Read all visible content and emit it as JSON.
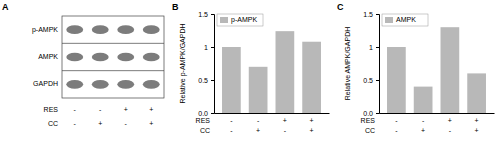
{
  "chart_data": [
    {
      "type": "blot",
      "title": "A",
      "rows": [
        "p-AMPK",
        "AMPK",
        "GAPDH"
      ],
      "categories": [
        [
          "-",
          "-"
        ],
        [
          "-",
          "+"
        ],
        [
          "+",
          "-"
        ],
        [
          "+",
          "+"
        ]
      ],
      "annotations": [
        "RES",
        "CC"
      ]
    },
    {
      "type": "bar",
      "title": "B",
      "ylabel": "Relative p-AMPK/GAPDH",
      "categories": [
        [
          "-",
          "-"
        ],
        [
          "-",
          "+"
        ],
        [
          "+",
          "-"
        ],
        [
          "+",
          "+"
        ]
      ],
      "annotations": [
        "RES",
        "CC"
      ],
      "series": [
        {
          "name": "p-AMPK",
          "color": "#b8b8b8",
          "values": [
            1.0,
            0.7,
            1.24,
            1.08
          ]
        }
      ],
      "ylim": [
        0,
        1.5
      ],
      "yticks": [
        {
          "value": 0.0,
          "label": "0.0"
        },
        0.5,
        1,
        1.5
      ],
      "legend": "upper left",
      "grid": false
    },
    {
      "type": "bar",
      "title": "C",
      "ylabel": "Relative AMPK/GAPDH",
      "categories": [
        [
          "-",
          "-"
        ],
        [
          "-",
          "+"
        ],
        [
          "+",
          "-"
        ],
        [
          "+",
          "+"
        ]
      ],
      "annotations": [
        "RES",
        "CC"
      ],
      "series": [
        {
          "name": "AMPK",
          "color": "#b8b8b8",
          "values": [
            1.0,
            0.4,
            1.3,
            0.6
          ]
        }
      ],
      "ylim": [
        0,
        1.5
      ],
      "yticks": [
        {
          "value": 0.0,
          "label": "0.0"
        },
        0.5,
        1,
        1.5
      ],
      "legend": "upper left",
      "grid": false
    }
  ]
}
